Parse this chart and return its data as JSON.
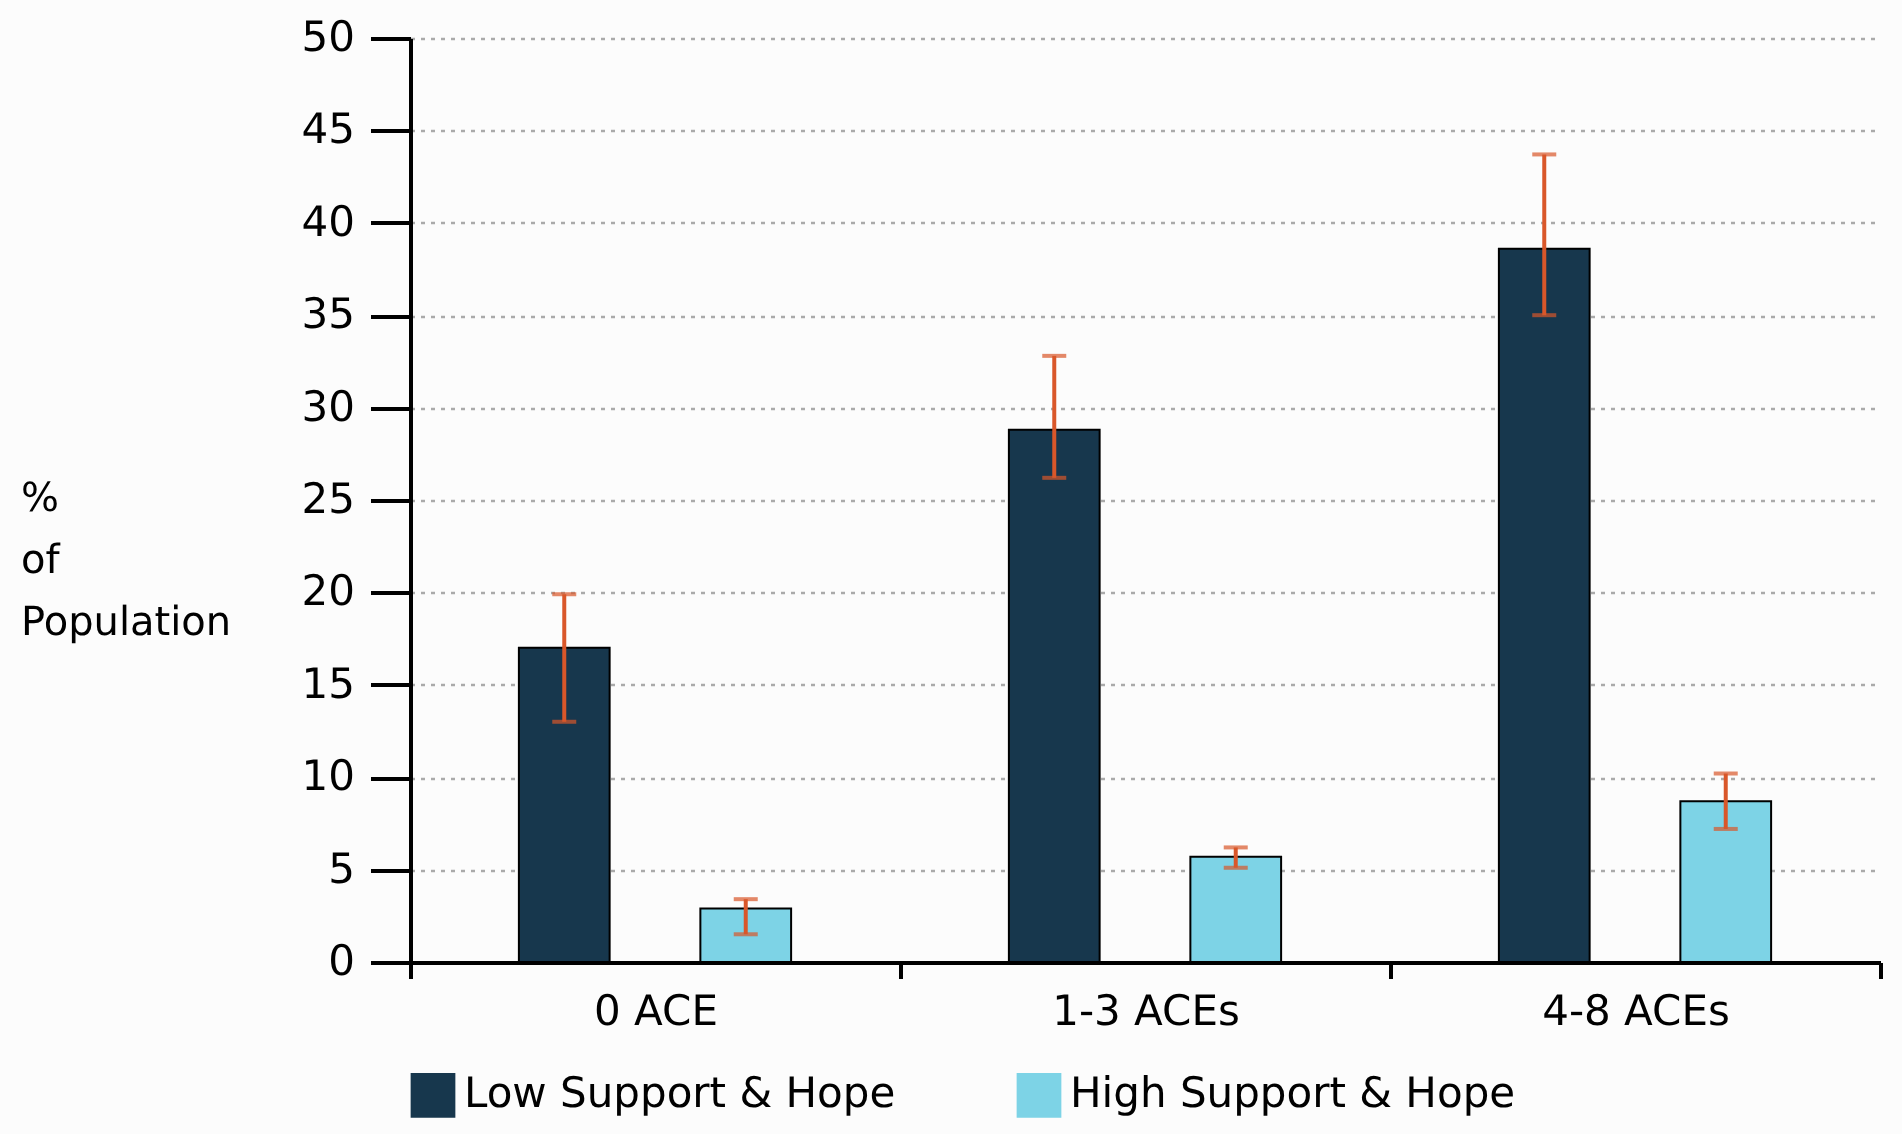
{
  "chart_data": {
    "type": "bar",
    "ylabel": "% of Population",
    "categories": [
      "0 ACE",
      "1-3 ACEs",
      "4-8 ACEs"
    ],
    "series": [
      {
        "name": "Low Support & Hope",
        "color": "#17374d",
        "values": [
          17,
          28.8,
          38.6
        ],
        "errors": [
          [
            13,
            19.9
          ],
          [
            26.2,
            32.8
          ],
          [
            35,
            43.7
          ]
        ]
      },
      {
        "name": "High Support & Hope",
        "color": "#7dd3e6",
        "values": [
          2.9,
          5.7,
          8.7
        ],
        "errors": [
          [
            1.5,
            3.4
          ],
          [
            5.1,
            6.2
          ],
          [
            7.2,
            10.2
          ]
        ]
      }
    ],
    "ylim": [
      0,
      50
    ],
    "yticks": [
      0,
      5,
      10,
      15,
      20,
      25,
      30,
      35,
      40,
      45,
      50
    ],
    "grid": "y",
    "legend": "bottom"
  }
}
